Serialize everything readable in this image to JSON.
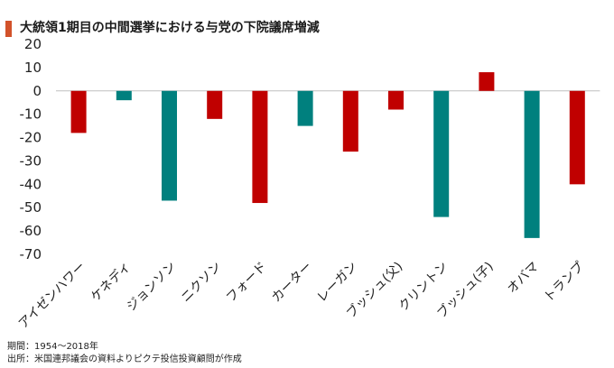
{
  "colors": {
    "title_bar": "#d2522a",
    "negative": "#c00000",
    "positive": "#c00000",
    "teal": "#00807e"
  },
  "title": "大統領1期目の中間選挙における与党の下院議席増減",
  "footer": {
    "period": "期間：1954～2018年",
    "source": "出所：米国連邦議会の資料よりピクテ投信投資顧問が作成"
  },
  "chart_data": {
    "type": "bar",
    "title": "大統領1期目の中間選挙における与党の下院議席増減",
    "xlabel": "",
    "ylabel": "",
    "ylim": [
      -70,
      20
    ],
    "yticks": [
      20,
      10,
      0,
      -10,
      -20,
      -30,
      -40,
      -50,
      -60,
      -70
    ],
    "grid": false,
    "legend": "none",
    "categories": [
      "アイゼンハワー",
      "ケネディ",
      "ジョンソン",
      "ニクソン",
      "フォード",
      "カーター",
      "レーガン",
      "ブッシュ(父)",
      "クリントン",
      "ブッシュ(子)",
      "オバマ",
      "トランプ"
    ],
    "values": [
      -18,
      -4,
      -47,
      -12,
      -48,
      -15,
      -26,
      -8,
      -54,
      8,
      -63,
      -40
    ],
    "bar_colors": [
      "#c00000",
      "#00807e",
      "#00807e",
      "#c00000",
      "#c00000",
      "#00807e",
      "#c00000",
      "#c00000",
      "#00807e",
      "#c00000",
      "#00807e",
      "#c00000"
    ]
  }
}
